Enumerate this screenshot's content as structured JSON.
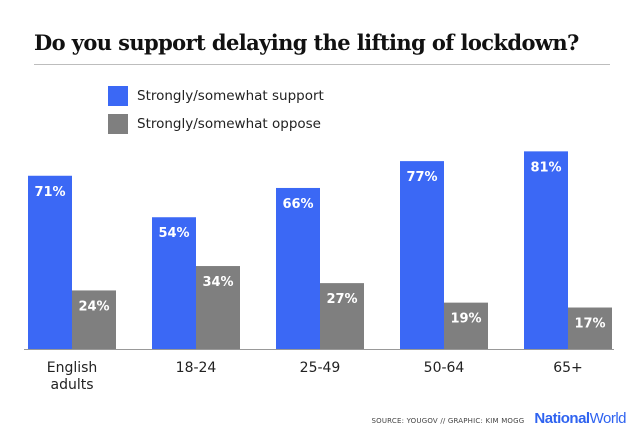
{
  "chart_data": {
    "type": "bar",
    "title": "Do you support delaying the lifting of lockdown?",
    "categories": [
      "English\nadults",
      "18-24",
      "25-49",
      "50-64",
      "65+"
    ],
    "series": [
      {
        "name": "Strongly/somewhat support",
        "values": [
          71,
          54,
          66,
          77,
          81
        ],
        "labels": [
          "71%",
          "54%",
          "66%",
          "77%",
          "81%"
        ],
        "color": "#3b68f5"
      },
      {
        "name": "Strongly/somewhat oppose",
        "values": [
          24,
          34,
          27,
          19,
          17
        ],
        "labels": [
          "24%",
          "34%",
          "27%",
          "19%",
          "17%"
        ],
        "color": "#7f7f7f"
      }
    ],
    "ylim": [
      0,
      100
    ],
    "xlabel": "",
    "ylabel": "",
    "grid": false,
    "legend_position": "top-left"
  },
  "footer": {
    "source": "SOURCE: YOUGOV  //  GRAPHIC: KIM MOGG",
    "brand_bold": "National",
    "brand_light": "World",
    "brand_color": "#2f63f0"
  },
  "colors": {
    "support": "#3b68f5",
    "oppose": "#7f7f7f",
    "bar_label": "#ffffff",
    "axis": "#999999",
    "tick_label": "#222222"
  }
}
